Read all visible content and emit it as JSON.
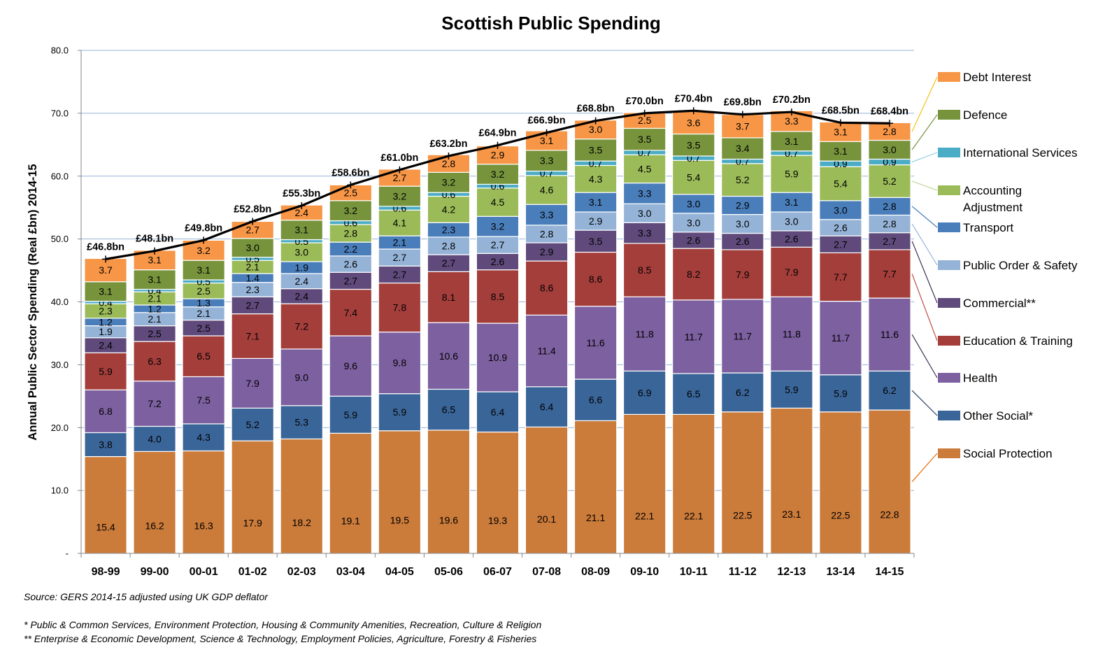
{
  "chart_data": {
    "type": "bar",
    "stacked": true,
    "title": "Scottish Public Spending",
    "xlabel": "",
    "ylabel": "Annual Public Sector Spending (Real £bn) 2014-15",
    "ylim": [
      0,
      80
    ],
    "yticks": [
      "-",
      "10.0",
      "20.0",
      "30.0",
      "40.0",
      "50.0",
      "60.0",
      "70.0",
      "80.0"
    ],
    "ytick_values": [
      0,
      10,
      20,
      30,
      40,
      50,
      60,
      70,
      80
    ],
    "grid": true,
    "legend_position": "right",
    "categories": [
      "98-99",
      "99-00",
      "00-01",
      "01-02",
      "02-03",
      "03-04",
      "04-05",
      "05-06",
      "06-07",
      "07-08",
      "08-09",
      "09-10",
      "10-11",
      "11-12",
      "12-13",
      "13-14",
      "14-15"
    ],
    "series": [
      {
        "name": "Social Protection",
        "color": "#CB7B3A",
        "values": [
          15.4,
          16.2,
          16.3,
          17.9,
          18.2,
          19.1,
          19.5,
          19.6,
          19.3,
          20.1,
          21.1,
          22.1,
          22.1,
          22.5,
          23.1,
          22.5,
          22.8
        ],
        "labels": [
          "15.4",
          "16.2",
          "16.3",
          "17.9",
          "18.2",
          "19.1",
          "19.5",
          "19.6",
          "19.3",
          "20.1",
          "21.1",
          "22.1",
          "22.1",
          "22.5",
          "23.1",
          "22.5",
          "22.8"
        ]
      },
      {
        "name": "Other Social*",
        "color": "#3A6598",
        "values": [
          3.8,
          4.0,
          4.3,
          5.2,
          5.3,
          5.9,
          5.9,
          6.5,
          6.4,
          6.4,
          6.6,
          6.9,
          6.5,
          6.2,
          5.9,
          5.9,
          6.2
        ],
        "labels": [
          "3.8",
          "4.0",
          "4.3",
          "5.2",
          "5.3",
          "5.9",
          "5.9",
          "6.5",
          "6.4",
          "6.4",
          "6.6",
          "6.9",
          "6.5",
          "6.2",
          "5.9",
          "5.9",
          "6.2"
        ]
      },
      {
        "name": "Health",
        "color": "#7D60A0",
        "values": [
          6.8,
          7.2,
          7.5,
          7.9,
          9.0,
          9.6,
          9.8,
          10.6,
          10.9,
          11.4,
          11.6,
          11.8,
          11.7,
          11.7,
          11.8,
          11.7,
          11.6
        ],
        "labels": [
          "6.8",
          "7.2",
          "7.5",
          "7.9",
          "9.0",
          "9.6",
          "9.8",
          "10.6",
          "10.9",
          "11.4",
          "11.6",
          "11.8",
          "11.7",
          "11.7",
          "11.8",
          "11.7",
          "11.6"
        ]
      },
      {
        "name": "Education & Training",
        "color": "#A33E3B",
        "values": [
          5.9,
          6.3,
          6.5,
          7.1,
          7.2,
          7.4,
          7.8,
          8.1,
          8.5,
          8.6,
          8.6,
          8.5,
          8.2,
          7.9,
          7.9,
          7.7,
          7.7
        ],
        "labels": [
          "5.9",
          "6.3",
          "6.5",
          "7.1",
          "7.2",
          "7.4",
          "7.8",
          "8.1",
          "8.5",
          "8.6",
          "8.6",
          "8.5",
          "8.2",
          "7.9",
          "7.9",
          "7.7",
          "7.7"
        ]
      },
      {
        "name": "Commercial**",
        "color": "#5F4A7B",
        "values": [
          2.4,
          2.5,
          2.5,
          2.7,
          2.4,
          2.7,
          2.7,
          2.7,
          2.6,
          2.9,
          3.5,
          3.3,
          2.6,
          2.6,
          2.6,
          2.7,
          2.7
        ],
        "labels": [
          "2.4",
          "2.5",
          "2.5",
          "2.7",
          "2.4",
          "2.7",
          "2.7",
          "2.7",
          "2.6",
          "2.9",
          "3.5",
          "3.3",
          "2.6",
          "2.6",
          "2.6",
          "2.7",
          "2.7"
        ]
      },
      {
        "name": "Public Order & Safety",
        "color": "#95B3D7",
        "values": [
          1.9,
          2.1,
          2.1,
          2.3,
          2.4,
          2.6,
          2.7,
          2.8,
          2.7,
          2.8,
          2.9,
          3.0,
          3.0,
          3.0,
          3.0,
          2.6,
          2.8
        ],
        "labels": [
          "1.9",
          "2.1",
          "2.1",
          "2.3",
          "2.4",
          "2.6",
          "2.7",
          "2.8",
          "2.7",
          "2.8",
          "2.9",
          "3.0",
          "3.0",
          "3.0",
          "3.0",
          "2.6",
          "2.8"
        ]
      },
      {
        "name": "Transport",
        "color": "#4A7EBB",
        "values": [
          1.2,
          1.2,
          1.3,
          1.4,
          1.9,
          2.2,
          2.1,
          2.3,
          3.2,
          3.3,
          3.1,
          3.3,
          3.0,
          2.9,
          3.1,
          3.0,
          2.8
        ],
        "labels": [
          "1.2",
          "1.2",
          "1.3",
          "1.4",
          "1.9",
          "2.2",
          "2.1",
          "2.3",
          "3.2",
          "3.3",
          "3.1",
          "3.3",
          "3.0",
          "2.9",
          "3.1",
          "3.0",
          "2.8"
        ]
      },
      {
        "name": "Accounting Adjustment",
        "color": "#9BBB59",
        "values": [
          2.3,
          2.1,
          2.5,
          2.1,
          3.0,
          2.8,
          4.1,
          4.2,
          4.5,
          4.6,
          4.3,
          4.5,
          5.4,
          5.2,
          5.9,
          5.4,
          5.2
        ],
        "labels": [
          "2.3",
          "2.1",
          "2.5",
          "2.1",
          "3.0",
          "2.8",
          "4.1",
          "4.2",
          "4.5",
          "4.6",
          "4.3",
          "4.5",
          "5.4",
          "5.2",
          "5.9",
          "5.4",
          "5.2"
        ]
      },
      {
        "name": "International Services",
        "color": "#4BACC6",
        "values": [
          0.4,
          0.4,
          0.5,
          0.5,
          0.5,
          0.6,
          0.6,
          0.6,
          0.6,
          0.7,
          0.7,
          0.7,
          0.7,
          0.7,
          0.7,
          0.9,
          0.9
        ],
        "labels": [
          "0.4",
          "0.4",
          "0.5",
          "0.5",
          "0.5",
          "0.6",
          "0.6",
          "0.6",
          "0.6",
          "0.7",
          "0.7",
          "0.7",
          "0.7",
          "0.7",
          "0.7",
          "0.9",
          "0.9"
        ]
      },
      {
        "name": "Defence",
        "color": "#77933C",
        "values": [
          3.1,
          3.1,
          3.1,
          3.0,
          3.1,
          3.2,
          3.2,
          3.2,
          3.2,
          3.3,
          3.5,
          3.5,
          3.5,
          3.4,
          3.1,
          3.1,
          3.0
        ],
        "labels": [
          "3.1",
          "3.1",
          "3.1",
          "3.0",
          "3.1",
          "3.2",
          "3.2",
          "3.2",
          "3.2",
          "3.3",
          "3.5",
          "3.5",
          "3.5",
          "3.4",
          "3.1",
          "3.1",
          "3.0"
        ]
      },
      {
        "name": "Debt Interest",
        "color": "#F79646",
        "values": [
          3.7,
          3.1,
          3.2,
          2.7,
          2.4,
          2.5,
          2.7,
          2.8,
          2.9,
          3.1,
          3.0,
          2.5,
          3.6,
          3.7,
          3.3,
          3.1,
          2.8
        ],
        "labels": [
          "3.7",
          "3.1",
          "3.2",
          "2.7",
          "2.4",
          "2.5",
          "2.7",
          "2.8",
          "2.9",
          "3.1",
          "3.0",
          "2.5",
          "3.6",
          "3.7",
          "3.3",
          "3.1",
          "2.8"
        ]
      }
    ],
    "totals": {
      "values": [
        46.8,
        48.1,
        49.8,
        52.8,
        55.3,
        58.6,
        61.0,
        63.2,
        64.9,
        66.9,
        68.8,
        70.0,
        70.4,
        69.8,
        70.2,
        68.5,
        68.4
      ],
      "labels": [
        "£46.8bn",
        "£48.1bn",
        "£49.8bn",
        "£52.8bn",
        "£55.3bn",
        "£58.6bn",
        "£61.0bn",
        "£63.2bn",
        "£64.9bn",
        "£66.9bn",
        "£68.8bn",
        "£70.0bn",
        "£70.4bn",
        "£69.8bn",
        "£70.2bn",
        "£68.5bn",
        "£68.4bn"
      ]
    },
    "legend": [
      {
        "label": "Debt Interest",
        "series": "Debt Interest",
        "color": "#F79646",
        "line_color": "#F2C314"
      },
      {
        "label": "Defence",
        "series": "Defence",
        "color": "#77933C",
        "line_color": "#77933C"
      },
      {
        "label": "International Services",
        "series": "International Services",
        "color": "#4BACC6",
        "line_color": "#93CDDD"
      },
      {
        "label": "Accounting",
        "label2": "Adjustment",
        "series": "Accounting Adjustment",
        "color": "#9BBB59",
        "line_color": "#C3D69B"
      },
      {
        "label": "Transport",
        "series": "Transport",
        "color": "#4A7EBB",
        "line_color": "#4A7EBB"
      },
      {
        "label": "Public Order & Safety",
        "series": "Public Order & Safety",
        "color": "#95B3D7",
        "line_color": "#95B3D7"
      },
      {
        "label": "Commercial**",
        "series": "Commercial**",
        "color": "#5F4A7B",
        "line_color": "#403152"
      },
      {
        "label": "Education & Training",
        "series": "Education & Training",
        "color": "#A33E3B",
        "line_color": "#C0504D"
      },
      {
        "label": "Health",
        "series": "Health",
        "color": "#7D60A0",
        "line_color": "#403152"
      },
      {
        "label": "Other Social*",
        "series": "Other Social*",
        "color": "#3A6598",
        "line_color": "#254061"
      },
      {
        "label": "Social Protection",
        "series": "Social Protection",
        "color": "#CB7B3A",
        "line_color": "#E46C0A"
      }
    ]
  },
  "notes": {
    "source": "Source: GERS 2014-15 adjusted using UK GDP deflator",
    "footnote_1": "* Public & Common Services, Environment Protection, Housing & Community Amenities, Recreation, Culture & Religion",
    "footnote_2": "** Enterprise & Economic Development, Science & Technology, Employment Policies, Agriculture, Forestry & Fisheries"
  }
}
